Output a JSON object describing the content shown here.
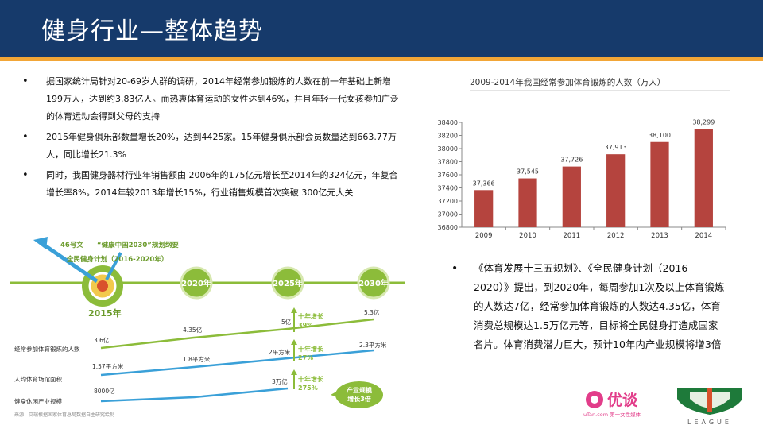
{
  "header": {
    "title": "健身行业—整体趋势"
  },
  "bullets": [
    {
      "text": "据国家统计局针对20-69岁人群的调研，2014年经常参加锻炼的人数在前一年基础上新增199万人，达到约3.83亿人。而热衷体育运动的女性达到46%，并且年轻一代女孩参加广泛的体育运动会得到父母的支持"
    },
    {
      "text": "2015年健身俱乐部数量增长20%，达到4425家。15年健身俱乐部会员数量达到663.77万人，同比增长21.3%"
    },
    {
      "text": "同时，我国健身器材行业年销售额由 2006年的175亿元增长至2014年的324亿元，年复合增长率8%。2014年较2013年增长15%，行业销售规模首次突破 300亿元大关"
    }
  ],
  "right_bullet": {
    "text": "《体育发展十三五规划》、《全民健身计划（2016-2020）》提出，到2020年，每周参加1次及以上体育锻炼的人数达7亿，经常参加体育锻炼的人数达4.35亿，体育消费总规模达1.5万亿元等，目标将全民健身打造成国家名片。体育消费潜力巨大，预计10年内产业规模将增3倍"
  },
  "chart_data": {
    "type": "bar",
    "title": "2009-2014年我国经常参加体育锻炼的人数（万人）",
    "categories": [
      "2009",
      "2010",
      "2011",
      "2012",
      "2013",
      "2014"
    ],
    "values": [
      37366,
      37545,
      37726,
      37913,
      38100,
      38299
    ],
    "value_labels": [
      "37,366",
      "37,545",
      "37,726",
      "37,913",
      "38,100",
      "38,299"
    ],
    "ylim": [
      36800,
      38400
    ],
    "yticks": [
      36800,
      37000,
      37200,
      37400,
      37600,
      37800,
      38000,
      38200,
      38400
    ],
    "bar_color": "#b5443e",
    "xlabel": "",
    "ylabel": ""
  },
  "timeline": {
    "doc_label": "46号文",
    "plan_label": "“健康中国2030”规划纲要",
    "fitness_plan_label": "全民健身计划（2016-2020年）",
    "start_year": "2015年",
    "milestones": [
      "2020年",
      "2025年",
      "2030年"
    ],
    "rows": [
      {
        "label": "经常参加体育锻炼的人数",
        "values": [
          "3.6亿",
          "4.35亿",
          "5亿",
          "5.3亿"
        ],
        "growth_title": "十年增长",
        "growth_value": "39%"
      },
      {
        "label": "人均体育场馆面积",
        "values": [
          "1.57平方米",
          "1.8平方米",
          "2平方米",
          "2.3平方米"
        ],
        "growth_title": "十年增长",
        "growth_value": "27%"
      },
      {
        "label": "健身休闲产业规模",
        "values": [
          "8000亿",
          "3万亿"
        ],
        "growth_title": "十年增长",
        "growth_value": "275%"
      }
    ],
    "callout": [
      "产业规模",
      "增长3倍"
    ],
    "source": "来源：艾瑞根据国家体育总局数据自主研究绘制"
  },
  "logos": {
    "youtan_name": "优谈",
    "youtan_sub": "uTan.com 第一女性媒体",
    "league": "LEAGUE"
  },
  "colors": {
    "header": "#163a6b",
    "accent": "#f2a637",
    "bar": "#b5443e",
    "timeline_green": "#8cbc3a",
    "blue": "#3aa0d8"
  }
}
